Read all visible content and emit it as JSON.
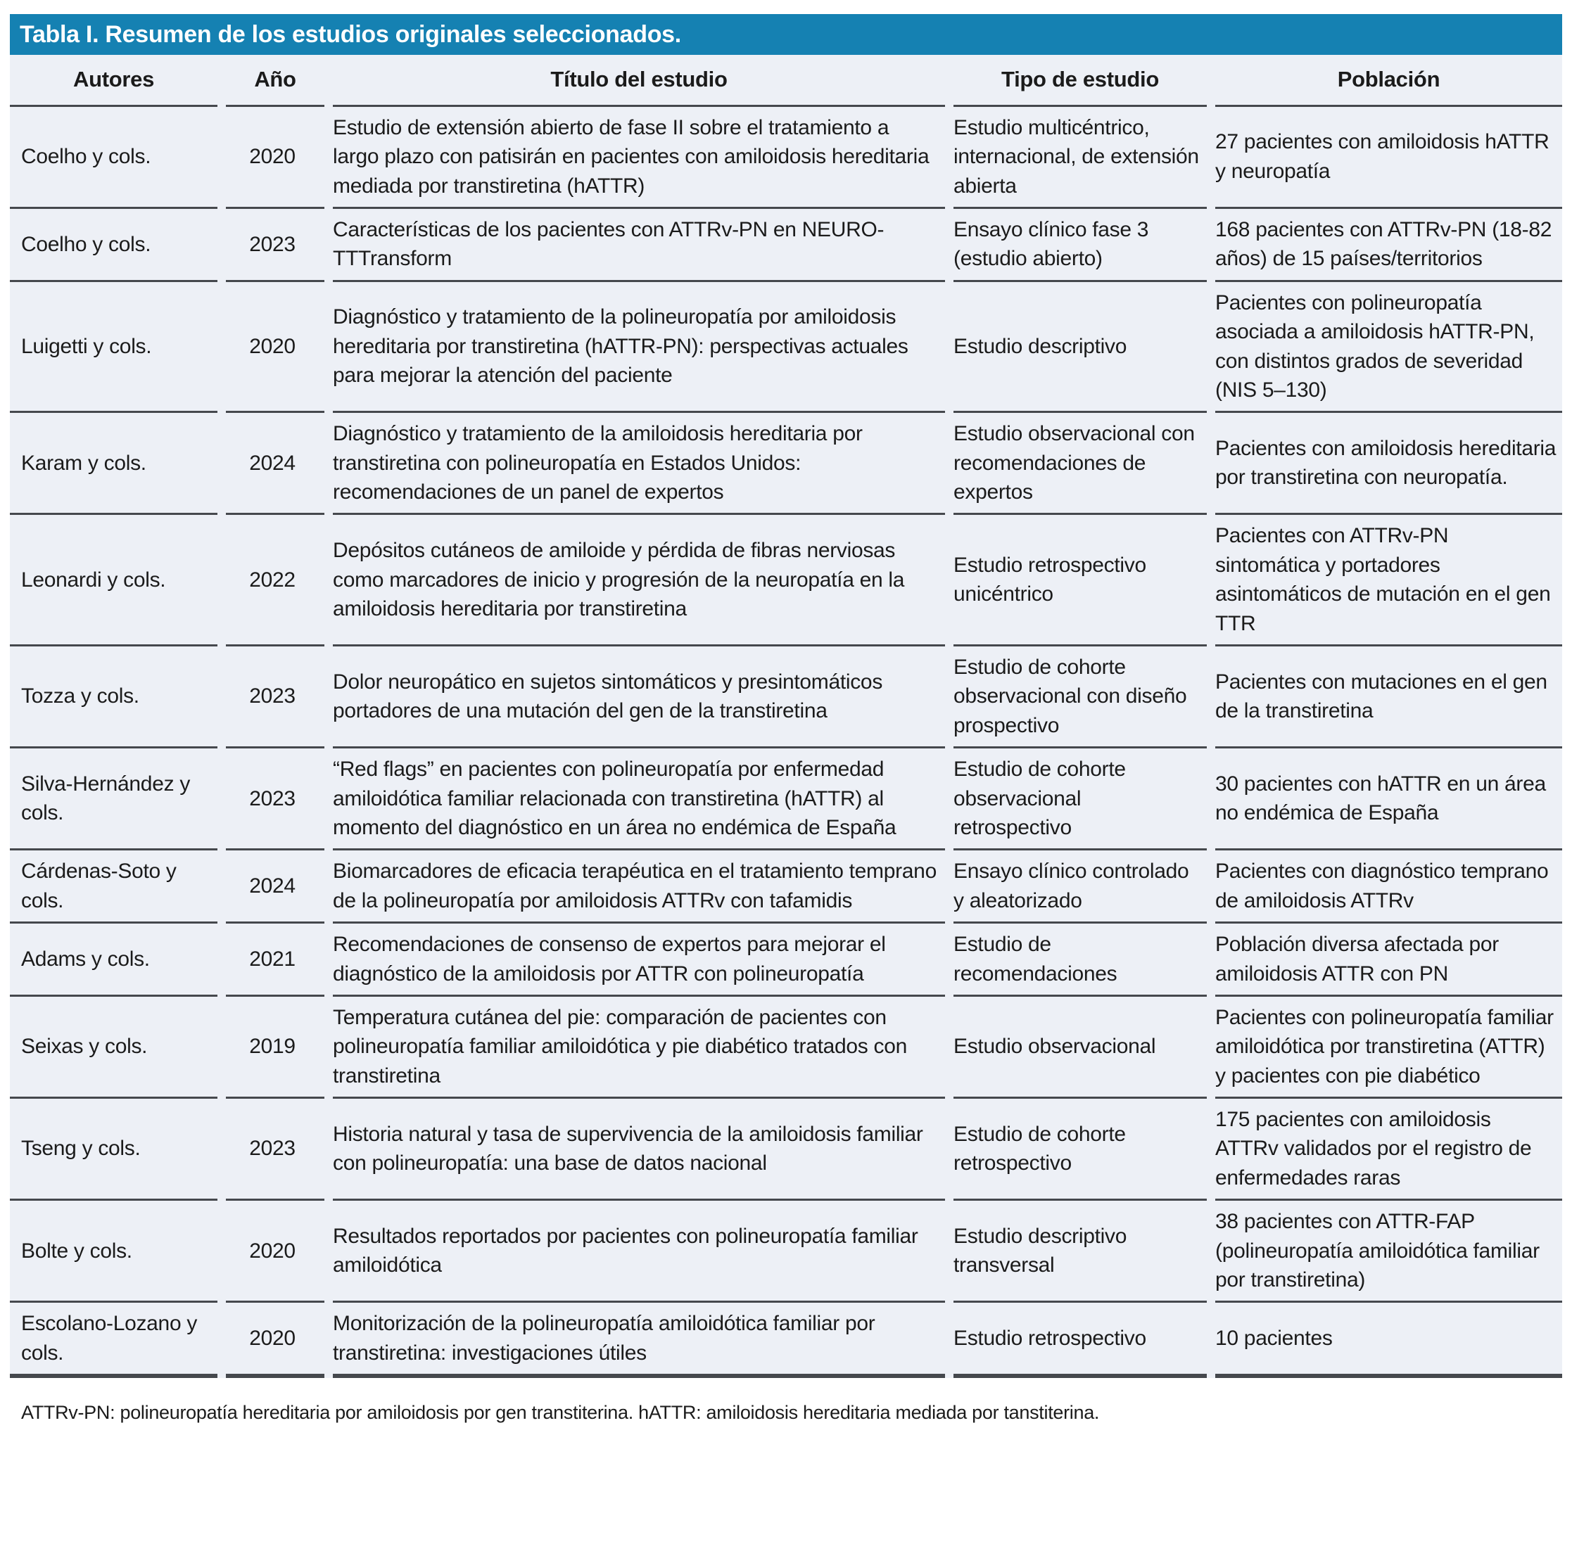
{
  "table": {
    "title": "Tabla I. Resumen de los estudios originales seleccionados.",
    "columns": [
      "Autores",
      "Año",
      "Título del estudio",
      "Tipo de estudio",
      "Población"
    ],
    "rows": [
      {
        "autores": "Coelho y cols.",
        "ano": "2020",
        "titulo": "Estudio de extensión abierto de fase II sobre el tratamiento a largo plazo con patisirán en pacientes con amiloidosis hereditaria mediada por transtiretina (hATTR)",
        "tipo": "Estudio multicéntrico, internacional, de extensión abierta",
        "poblacion": "27 pacientes con amiloidosis hATTR y neuropatía"
      },
      {
        "autores": "Coelho y cols.",
        "ano": "2023",
        "titulo": "Características de los pacientes con ATTRv-PN en NEURO-TTTransform",
        "tipo": "Ensayo clínico fase 3 (estudio abierto)",
        "poblacion": "168 pacientes con ATTRv-PN (18-82 años) de 15 países/territorios"
      },
      {
        "autores": "Luigetti y cols.",
        "ano": "2020",
        "titulo": "Diagnóstico y tratamiento de la polineuropatía por amiloidosis hereditaria por transtiretina (hATTR-PN): perspectivas actuales para mejorar la atención del paciente",
        "tipo": "Estudio descriptivo",
        "poblacion": "Pacientes con polineuropatía asociada a amiloidosis hATTR-PN, con distintos grados de severidad (NIS 5–130)"
      },
      {
        "autores": "Karam y cols.",
        "ano": "2024",
        "titulo": "Diagnóstico y tratamiento de la amiloidosis hereditaria por transtiretina con polineuropatía en Estados Unidos: recomendaciones de un panel de expertos",
        "tipo": "Estudio observacional con recomendaciones de expertos",
        "poblacion": "Pacientes con amiloidosis hereditaria por transtiretina con neuropatía."
      },
      {
        "autores": "Leonardi y cols.",
        "ano": "2022",
        "titulo": "Depósitos cutáneos de amiloide y pérdida de fibras nerviosas como marcadores de inicio y progresión de la neuropatía en la amiloidosis hereditaria por transtiretina",
        "tipo": "Estudio retrospectivo unicéntrico",
        "poblacion": "Pacientes con ATTRv-PN sintomática y portadores asintomáticos de mutación en el gen TTR"
      },
      {
        "autores": "Tozza y cols.",
        "ano": "2023",
        "titulo": "Dolor neuropático en sujetos sintomáticos y presintomáticos portadores de una mutación del gen de la transtiretina",
        "tipo": "Estudio de cohorte observacional con diseño prospectivo",
        "poblacion": "Pacientes con mutaciones en el gen de la transtiretina"
      },
      {
        "autores": "Silva-Hernández y cols.",
        "ano": "2023",
        "titulo": "“Red flags” en pacientes con polineuropatía por enfermedad amiloidótica familiar relacionada con transtiretina (hATTR) al momento del diagnóstico en un área no endémica de España",
        "tipo": "Estudio de cohorte observacional retrospectivo",
        "poblacion": "30 pacientes con hATTR en un área no endémica de España"
      },
      {
        "autores": "Cárdenas-Soto y cols.",
        "ano": "2024",
        "titulo": "Biomarcadores de eficacia terapéutica en el tratamiento temprano de la polineuropatía por amiloidosis ATTRv con tafamidis",
        "tipo": "Ensayo clínico controlado y aleatorizado",
        "poblacion": "Pacientes con diagnóstico temprano de amiloidosis ATTRv"
      },
      {
        "autores": "Adams y cols.",
        "ano": "2021",
        "titulo": "Recomendaciones de consenso de expertos para mejorar el diagnóstico de la amiloidosis por ATTR con polineuropatía",
        "tipo": "Estudio de recomendaciones",
        "poblacion": "Población diversa afectada por amiloidosis ATTR con PN"
      },
      {
        "autores": "Seixas y cols.",
        "ano": "2019",
        "titulo": "Temperatura cutánea del pie: comparación de pacientes con polineuropatía familiar amiloidótica y pie diabético tratados con transtiretina",
        "tipo": "Estudio observacional",
        "poblacion": "Pacientes con polineuropatía familiar amiloidótica por transtiretina (ATTR) y pacientes con pie diabético"
      },
      {
        "autores": "Tseng y cols.",
        "ano": "2023",
        "titulo": "Historia natural y tasa de supervivencia de la amiloidosis familiar con polineuropatía: una base de datos nacional",
        "tipo": "Estudio de cohorte retrospectivo",
        "poblacion": "175 pacientes con amiloidosis ATTRv validados por el registro de enfermedades raras"
      },
      {
        "autores": "Bolte y cols.",
        "ano": "2020",
        "titulo": "Resultados reportados por pacientes con polineuropatía familiar amiloidótica",
        "tipo": "Estudio descriptivo transversal",
        "poblacion": "38 pacientes con ATTR-FAP (polineuropatía amiloidótica familiar por transtiretina)"
      },
      {
        "autores": "Escolano-Lozano y cols.",
        "ano": "2020",
        "titulo": "Monitorización de la polineuropatía amiloidótica familiar por transtiretina: investigaciones útiles",
        "tipo": "Estudio retrospectivo",
        "poblacion": "10 pacientes"
      }
    ],
    "footnote": "ATTRv-PN: polineuropatía hereditaria por amiloidosis por gen transtiterina. hATTR: amiloidosis hereditaria mediada por tanstiterina."
  },
  "colors": {
    "header_bar": "#1581b2",
    "table_bg": "#edf0f6",
    "border": "#45484d",
    "text": "#1b1b1b"
  }
}
